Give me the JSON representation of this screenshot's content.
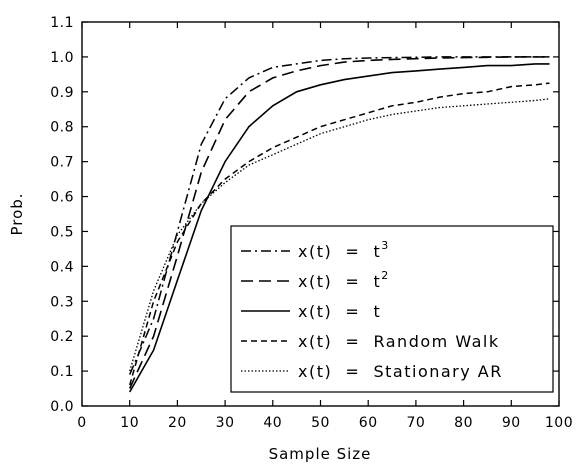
{
  "chart_data": {
    "type": "line",
    "title": "",
    "xlabel": "Sample Size",
    "ylabel": "Prob.",
    "xlim": [
      0,
      100
    ],
    "ylim": [
      0.0,
      1.1
    ],
    "xticks": [
      "0",
      "10",
      "20",
      "30",
      "40",
      "50",
      "60",
      "70",
      "80",
      "90",
      "100"
    ],
    "yticks": [
      "0.0",
      "0.1",
      "0.2",
      "0.3",
      "0.4",
      "0.5",
      "0.6",
      "0.7",
      "0.8",
      "0.9",
      "1.0",
      "1.1"
    ],
    "grid": false,
    "legend_position": "lower-right",
    "x": [
      10,
      15,
      20,
      25,
      30,
      35,
      40,
      45,
      50,
      55,
      60,
      65,
      70,
      75,
      80,
      85,
      90,
      95,
      98
    ],
    "series": [
      {
        "legend_prefix": "x(t)  =  ",
        "legend_term": "t",
        "legend_sup": "3",
        "style": "dashdot",
        "values": [
          0.09,
          0.25,
          0.5,
          0.75,
          0.88,
          0.94,
          0.97,
          0.98,
          0.99,
          0.995,
          0.997,
          0.998,
          0.999,
          1.0,
          1.0,
          1.0,
          1.0,
          1.0,
          1.0
        ]
      },
      {
        "legend_prefix": "x(t)  =  ",
        "legend_term": "t",
        "legend_sup": "2",
        "style": "longdash",
        "values": [
          0.05,
          0.2,
          0.43,
          0.67,
          0.82,
          0.9,
          0.94,
          0.96,
          0.975,
          0.985,
          0.99,
          0.993,
          0.995,
          0.997,
          0.998,
          0.999,
          1.0,
          1.0,
          1.0
        ]
      },
      {
        "legend_prefix": "x(t)  =  ",
        "legend_term": "t",
        "legend_sup": "",
        "style": "solid",
        "values": [
          0.04,
          0.16,
          0.36,
          0.56,
          0.7,
          0.8,
          0.86,
          0.9,
          0.92,
          0.935,
          0.945,
          0.955,
          0.96,
          0.965,
          0.97,
          0.975,
          0.975,
          0.98,
          0.98
        ]
      },
      {
        "legend_prefix": "x(t)  =  ",
        "legend_term": "Random Walk",
        "legend_sup": "",
        "style": "shortdash",
        "values": [
          0.06,
          0.3,
          0.47,
          0.58,
          0.65,
          0.7,
          0.74,
          0.77,
          0.8,
          0.82,
          0.84,
          0.86,
          0.87,
          0.885,
          0.895,
          0.9,
          0.915,
          0.92,
          0.925
        ]
      },
      {
        "legend_prefix": "x(t)  =  ",
        "legend_term": "Stationary AR",
        "legend_sup": "",
        "style": "dotted",
        "values": [
          0.1,
          0.33,
          0.49,
          0.58,
          0.64,
          0.69,
          0.72,
          0.75,
          0.78,
          0.8,
          0.82,
          0.835,
          0.845,
          0.855,
          0.86,
          0.865,
          0.87,
          0.875,
          0.88
        ]
      }
    ]
  }
}
